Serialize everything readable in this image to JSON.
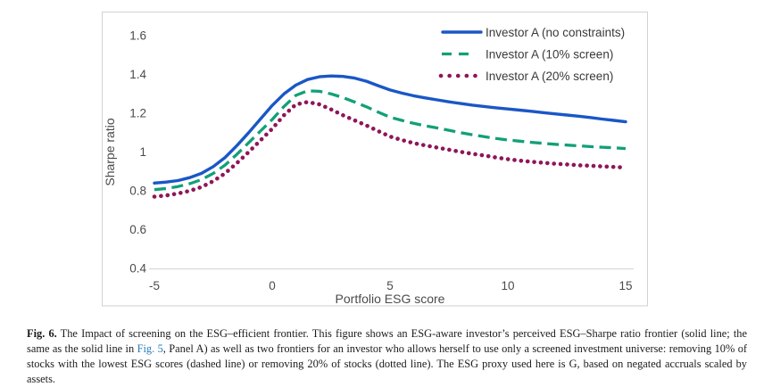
{
  "chart_data": {
    "type": "line",
    "title": "",
    "xlabel": "Portfolio ESG score",
    "ylabel": "Sharpe ratio",
    "xlim": [
      -5,
      15
    ],
    "ylim": [
      0.4,
      1.6
    ],
    "x_tick_labels": [
      "-5",
      "0",
      "5",
      "10",
      "15"
    ],
    "x_tick_values": [
      -5,
      0,
      5,
      10,
      15
    ],
    "y_tick_labels": [
      "0.4",
      "0.6",
      "0.8",
      "1",
      "1.2",
      "1.4",
      "1.6"
    ],
    "y_tick_values": [
      0.4,
      0.6,
      0.8,
      1,
      1.2,
      1.4,
      1.6
    ],
    "grid": false,
    "legend_position": "top-right",
    "x": [
      -5,
      -4.5,
      -4,
      -3.5,
      -3,
      -2.5,
      -2,
      -1.5,
      -1,
      -0.5,
      0,
      0.5,
      1,
      1.5,
      2,
      2.5,
      3,
      3.5,
      4,
      4.5,
      5,
      5.5,
      6,
      6.5,
      7,
      7.5,
      8,
      8.5,
      9,
      9.5,
      10,
      10.5,
      11,
      11.5,
      12,
      12.5,
      13,
      13.5,
      14,
      14.5,
      15
    ],
    "series": [
      {
        "name": "Investor A (no constraints)",
        "style": "solid",
        "color": "#1a57c6",
        "values": [
          0.84,
          0.845,
          0.853,
          0.868,
          0.89,
          0.925,
          0.972,
          1.033,
          1.1,
          1.17,
          1.24,
          1.3,
          1.345,
          1.374,
          1.388,
          1.392,
          1.39,
          1.381,
          1.365,
          1.342,
          1.32,
          1.304,
          1.29,
          1.279,
          1.269,
          1.259,
          1.25,
          1.242,
          1.235,
          1.228,
          1.222,
          1.216,
          1.21,
          1.203,
          1.197,
          1.191,
          1.185,
          1.178,
          1.17,
          1.163,
          1.156
        ]
      },
      {
        "name": "Investor A (10% screen)",
        "style": "dashed",
        "color": "#12a078",
        "values": [
          0.806,
          0.812,
          0.822,
          0.837,
          0.858,
          0.89,
          0.933,
          0.988,
          1.048,
          1.108,
          1.168,
          1.235,
          1.292,
          1.316,
          1.313,
          1.3,
          1.281,
          1.258,
          1.233,
          1.206,
          1.18,
          1.163,
          1.148,
          1.135,
          1.124,
          1.112,
          1.1,
          1.089,
          1.079,
          1.07,
          1.062,
          1.056,
          1.05,
          1.045,
          1.04,
          1.036,
          1.032,
          1.028,
          1.025,
          1.022,
          1.018
        ]
      },
      {
        "name": "Investor A (20% screen)",
        "style": "dotted",
        "color": "#8e1659",
        "values": [
          0.77,
          0.776,
          0.786,
          0.8,
          0.82,
          0.85,
          0.89,
          0.943,
          1.0,
          1.06,
          1.12,
          1.19,
          1.245,
          1.258,
          1.246,
          1.22,
          1.19,
          1.163,
          1.137,
          1.108,
          1.08,
          1.062,
          1.046,
          1.034,
          1.023,
          1.012,
          1.001,
          0.991,
          0.982,
          0.972,
          0.963,
          0.956,
          0.95,
          0.945,
          0.94,
          0.936,
          0.932,
          0.929,
          0.926,
          0.923,
          0.92
        ]
      }
    ],
    "colors": {
      "plot_border": "#d2d2d2",
      "axis_line": "#d9d9d9",
      "tick_text": "#4b4b4b",
      "legend_text": "#3a3a3a"
    }
  },
  "caption": {
    "label": "Fig. 6.",
    "text_before_link": " The Impact of screening on the ESG–efficient frontier. This figure shows an ESG-aware investor’s perceived ESG–Sharpe ratio frontier (solid line; the same as the solid line in ",
    "link": "Fig. 5",
    "text_after_link": ", Panel A) as well as two frontiers for an investor who allows herself to use only a screened investment universe: removing 10% of stocks with the lowest ESG scores (dashed line) or removing 20% of stocks (dotted line). The ESG proxy used here is G, based on negated accruals scaled by assets.",
    "link_color": "#2d7cb8"
  }
}
